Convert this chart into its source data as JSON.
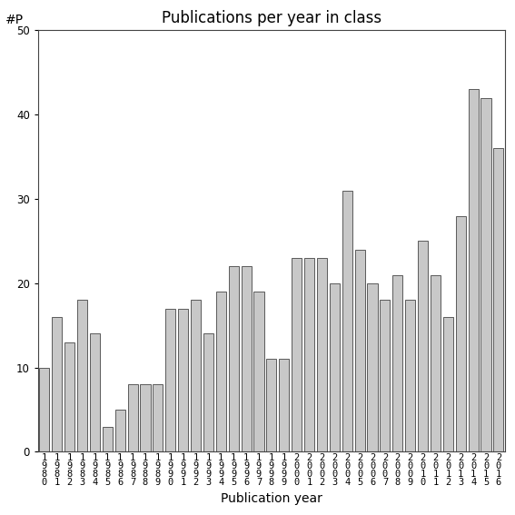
{
  "title": "Publications per year in class",
  "xlabel": "Publication year",
  "ylabel": "#P",
  "years": [
    1980,
    1981,
    1982,
    1983,
    1984,
    1985,
    1986,
    1987,
    1988,
    1989,
    1990,
    1991,
    1992,
    1993,
    1994,
    1995,
    1996,
    1997,
    1998,
    1999,
    2000,
    2001,
    2002,
    2003,
    2004,
    2005,
    2006,
    2007,
    2008,
    2009,
    2010,
    2011,
    2012,
    2013,
    2014,
    2015,
    2016
  ],
  "values": [
    10,
    16,
    13,
    18,
    14,
    3,
    5,
    8,
    8,
    8,
    17,
    17,
    18,
    14,
    19,
    22,
    22,
    19,
    11,
    11,
    23,
    23,
    23,
    20,
    31,
    24,
    20,
    18,
    21,
    18,
    25,
    21,
    16,
    28,
    43,
    42,
    36
  ],
  "bar_color": "#c8c8c8",
  "bar_edge_color": "#444444",
  "ylim": [
    0,
    50
  ],
  "yticks": [
    0,
    10,
    20,
    30,
    40,
    50
  ],
  "bg_color": "#ffffff",
  "title_fontsize": 12,
  "label_fontsize": 10,
  "tick_fontsize": 7.5
}
